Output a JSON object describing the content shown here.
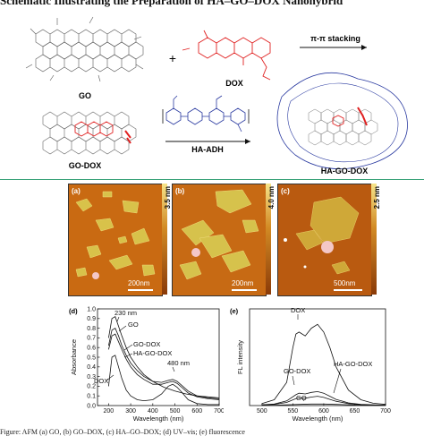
{
  "scheme": {
    "title": "Schematic Illustrating the Preparation of HA–GO–DOX Nanohybrid",
    "labels": {
      "go": "GO",
      "plus": "+",
      "dox": "DOX",
      "stacking": "π-π  stacking",
      "go_dox": "GO-DOX",
      "ha_adh": "HA-ADH",
      "ha_go_dox": "HA-GO-DOX"
    }
  },
  "afm": {
    "panels": [
      {
        "letter": "(a)",
        "scale": "200nm",
        "cbar": "3.5 nm",
        "bg": "#c96a12"
      },
      {
        "letter": "(b)",
        "scale": "200nm",
        "cbar": "4.0 nm",
        "bg": "#c76a14"
      },
      {
        "letter": "(c)",
        "scale": "500nm",
        "cbar": "2.5 nm",
        "bg": "#b95a10"
      }
    ]
  },
  "chart_data": [
    {
      "type": "line",
      "panel": "(d)",
      "xlabel": "Wavelength (nm)",
      "ylabel": "Absorbance",
      "xlim": [
        150,
        700
      ],
      "xticks": [
        200,
        300,
        400,
        500,
        600,
        700
      ],
      "ylim": [
        0,
        1.0
      ],
      "yticks": [
        0.0,
        0.1,
        0.2,
        0.3,
        0.4,
        0.5,
        0.6,
        0.7,
        0.8,
        0.9,
        1.0
      ],
      "annotations": [
        "230 nm",
        "GO",
        "GO-DOX",
        "HA-GO-DOX",
        "480 nm",
        "DOX"
      ],
      "series": [
        {
          "label": "GO",
          "x": [
            200,
            215,
            230,
            245,
            260,
            280,
            300,
            330,
            360,
            400,
            450,
            500,
            550,
            600,
            650,
            700
          ],
          "y": [
            0.7,
            0.9,
            0.92,
            0.82,
            0.72,
            0.6,
            0.5,
            0.4,
            0.32,
            0.25,
            0.19,
            0.15,
            0.12,
            0.1,
            0.09,
            0.08
          ]
        },
        {
          "label": "GO-DOX",
          "x": [
            200,
            215,
            230,
            245,
            260,
            280,
            300,
            330,
            360,
            400,
            440,
            470,
            490,
            510,
            530,
            560,
            600,
            650,
            700
          ],
          "y": [
            0.62,
            0.78,
            0.8,
            0.72,
            0.62,
            0.52,
            0.44,
            0.36,
            0.3,
            0.25,
            0.24,
            0.26,
            0.27,
            0.25,
            0.21,
            0.15,
            0.1,
            0.08,
            0.07
          ]
        },
        {
          "label": "HA-GO-DOX",
          "x": [
            200,
            215,
            230,
            245,
            260,
            280,
            300,
            330,
            360,
            400,
            440,
            470,
            490,
            510,
            530,
            560,
            600,
            650,
            700
          ],
          "y": [
            0.58,
            0.72,
            0.74,
            0.66,
            0.58,
            0.48,
            0.4,
            0.32,
            0.27,
            0.22,
            0.22,
            0.24,
            0.25,
            0.23,
            0.19,
            0.13,
            0.09,
            0.07,
            0.06
          ]
        },
        {
          "label": "DOX",
          "x": [
            200,
            215,
            230,
            245,
            260,
            280,
            300,
            330,
            360,
            400,
            440,
            470,
            490,
            510,
            530,
            560,
            600,
            650,
            700
          ],
          "y": [
            0.2,
            0.5,
            0.52,
            0.4,
            0.28,
            0.16,
            0.1,
            0.06,
            0.05,
            0.06,
            0.12,
            0.2,
            0.22,
            0.19,
            0.14,
            0.06,
            0.02,
            0.01,
            0.01
          ]
        }
      ]
    },
    {
      "type": "line",
      "panel": "(e)",
      "xlabel": "Wavelength (nm)",
      "ylabel": "FL intensity",
      "xlim": [
        480,
        700
      ],
      "xticks": [
        500,
        550,
        600,
        650,
        700
      ],
      "ylim": [
        0,
        250
      ],
      "annotations": [
        "DOX",
        "GO-DOX",
        "HA-GO-DOX",
        "GO"
      ],
      "series": [
        {
          "label": "DOX",
          "x": [
            500,
            520,
            540,
            550,
            555,
            560,
            570,
            580,
            590,
            600,
            610,
            620,
            640,
            660,
            680,
            700
          ],
          "y": [
            5,
            15,
            60,
            150,
            185,
            190,
            180,
            200,
            210,
            190,
            150,
            100,
            40,
            15,
            6,
            3
          ]
        },
        {
          "label": "GO-DOX",
          "x": [
            500,
            520,
            540,
            555,
            560,
            570,
            580,
            590,
            600,
            610,
            620,
            640,
            660,
            680,
            700
          ],
          "y": [
            2,
            4,
            12,
            28,
            32,
            30,
            34,
            36,
            32,
            24,
            16,
            7,
            3,
            2,
            1
          ]
        },
        {
          "label": "HA-GO-DOX",
          "x": [
            500,
            520,
            540,
            555,
            560,
            570,
            580,
            590,
            600,
            610,
            620,
            640,
            660,
            680,
            700
          ],
          "y": [
            2,
            3,
            8,
            18,
            20,
            19,
            22,
            24,
            21,
            16,
            11,
            5,
            2,
            1,
            1
          ]
        },
        {
          "label": "GO",
          "x": [
            500,
            520,
            540,
            560,
            580,
            600,
            620,
            640,
            660,
            680,
            700
          ],
          "y": [
            1,
            1,
            2,
            3,
            4,
            4,
            3,
            2,
            1,
            1,
            1
          ]
        }
      ]
    }
  ],
  "caption": {
    "text": "Figure: AFM (a) GO, (b) GO–DOX, (c) HA–GO–DOX; (d) UV–vis; (e) fluorescence"
  }
}
